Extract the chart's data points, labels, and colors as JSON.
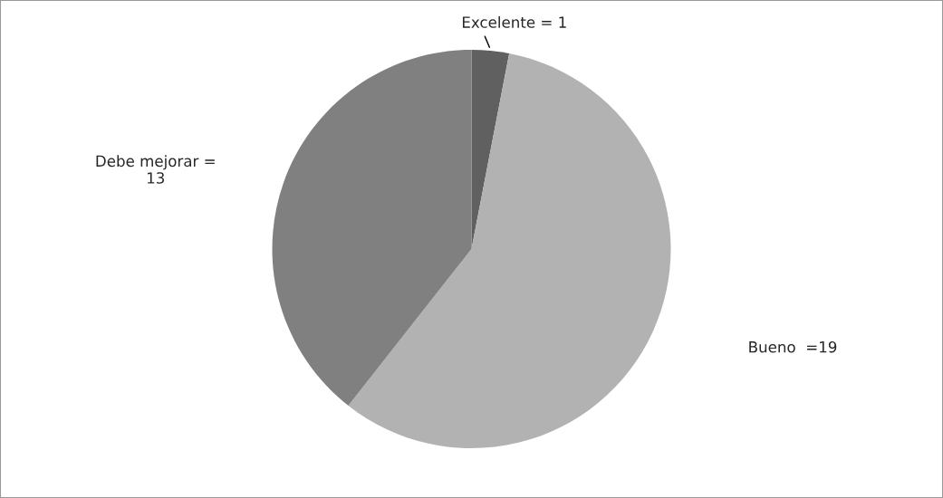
{
  "chart_data": {
    "type": "pie",
    "categories": [
      "Excelente = 1",
      "Bueno  =19",
      "Debe mejorar =\n13"
    ],
    "values": [
      1,
      19,
      13
    ],
    "colors": [
      "#606060",
      "#b2b2b2",
      "#808080"
    ],
    "legend": false
  }
}
